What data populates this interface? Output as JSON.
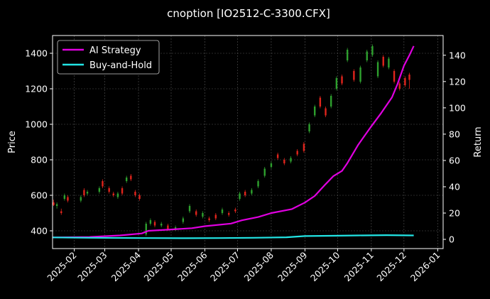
{
  "chart_data": {
    "type": "candlestick+line",
    "title": "cnoption [IO2512-C-3300.CFX]",
    "ylabel_left": "Price",
    "ylabel_right": "Return",
    "ylim_left": [
      300,
      1500
    ],
    "ylim_right": [
      -7,
      155
    ],
    "xlim": [
      "2025-01-12",
      "2026-01-06"
    ],
    "yticks_left": [
      400,
      600,
      800,
      1000,
      1200,
      1400
    ],
    "yticks_right": [
      0,
      20,
      40,
      60,
      80,
      100,
      120,
      140
    ],
    "xticks": [
      "2025-02",
      "2025-03",
      "2025-04",
      "2025-05",
      "2025-06",
      "2025-07",
      "2025-08",
      "2025-09",
      "2025-10",
      "2025-11",
      "2025-12",
      "2026-01"
    ],
    "grid": true,
    "legend_position": "top-left",
    "colors": {
      "background": "#000000",
      "ai_strategy": "#e000e0",
      "buy_and_hold": "#22e5e5",
      "candle_up": "#2ea02e",
      "candle_down": "#e0241c",
      "grid": "#555555"
    },
    "series": [
      {
        "name": "AI Strategy",
        "points": [
          [
            "2025-01-12",
            1.5
          ],
          [
            "2025-02-15",
            1.8
          ],
          [
            "2025-03-15",
            3.0
          ],
          [
            "2025-04-04",
            4.5
          ],
          [
            "2025-04-10",
            6.5
          ],
          [
            "2025-05-01",
            7.5
          ],
          [
            "2025-05-20",
            8.5
          ],
          [
            "2025-06-01",
            10.0
          ],
          [
            "2025-06-25",
            12.0
          ],
          [
            "2025-07-05",
            14.5
          ],
          [
            "2025-07-20",
            17.0
          ],
          [
            "2025-08-01",
            20.0
          ],
          [
            "2025-08-20",
            23.0
          ],
          [
            "2025-09-01",
            28.0
          ],
          [
            "2025-09-10",
            33.0
          ],
          [
            "2025-09-20",
            42.0
          ],
          [
            "2025-09-27",
            48.0
          ],
          [
            "2025-10-05",
            52.0
          ],
          [
            "2025-10-10",
            58.0
          ],
          [
            "2025-10-20",
            72.0
          ],
          [
            "2025-11-01",
            86.0
          ],
          [
            "2025-11-10",
            96.0
          ],
          [
            "2025-11-20",
            108.0
          ],
          [
            "2025-11-25",
            118.0
          ],
          [
            "2025-12-01",
            132.0
          ],
          [
            "2025-12-06",
            140.0
          ],
          [
            "2025-12-10",
            147.0
          ]
        ]
      },
      {
        "name": "Buy-and-Hold",
        "points": [
          [
            "2025-01-12",
            1.5
          ],
          [
            "2025-02-15",
            1.2
          ],
          [
            "2025-04-04",
            1.0
          ],
          [
            "2025-04-10",
            1.0
          ],
          [
            "2025-05-15",
            0.9
          ],
          [
            "2025-06-15",
            1.0
          ],
          [
            "2025-07-15",
            1.2
          ],
          [
            "2025-08-15",
            1.6
          ],
          [
            "2025-09-01",
            2.5
          ],
          [
            "2025-10-01",
            2.8
          ],
          [
            "2025-10-20",
            3.0
          ],
          [
            "2025-11-15",
            3.2
          ],
          [
            "2025-12-10",
            3.0
          ]
        ]
      }
    ],
    "candles": [
      [
        "2025-01-13",
        560,
        545,
        575,
        540
      ],
      [
        "2025-01-16",
        540,
        550,
        560,
        525
      ],
      [
        "2025-01-20",
        510,
        500,
        525,
        490
      ],
      [
        "2025-01-23",
        580,
        600,
        610,
        570
      ],
      [
        "2025-01-26",
        590,
        570,
        600,
        560
      ],
      [
        "2025-02-07",
        570,
        590,
        600,
        560
      ],
      [
        "2025-02-10",
        630,
        600,
        640,
        590
      ],
      [
        "2025-02-13",
        610,
        620,
        630,
        600
      ],
      [
        "2025-02-24",
        620,
        640,
        650,
        610
      ],
      [
        "2025-02-27",
        680,
        650,
        690,
        640
      ],
      [
        "2025-03-05",
        640,
        620,
        650,
        610
      ],
      [
        "2025-03-09",
        610,
        600,
        620,
        590
      ],
      [
        "2025-03-13",
        590,
        610,
        620,
        580
      ],
      [
        "2025-03-17",
        640,
        610,
        650,
        600
      ],
      [
        "2025-03-21",
        680,
        700,
        710,
        670
      ],
      [
        "2025-03-25",
        710,
        690,
        720,
        680
      ],
      [
        "2025-03-29",
        620,
        600,
        630,
        590
      ],
      [
        "2025-04-02",
        600,
        580,
        610,
        570
      ],
      [
        "2025-04-08",
        380,
        440,
        450,
        370
      ],
      [
        "2025-04-12",
        440,
        460,
        470,
        430
      ],
      [
        "2025-04-16",
        450,
        430,
        460,
        420
      ],
      [
        "2025-04-22",
        430,
        440,
        450,
        420
      ],
      [
        "2025-04-28",
        430,
        410,
        440,
        400
      ],
      [
        "2025-05-05",
        410,
        420,
        430,
        400
      ],
      [
        "2025-05-12",
        450,
        470,
        480,
        440
      ],
      [
        "2025-05-18",
        510,
        540,
        550,
        500
      ],
      [
        "2025-05-24",
        510,
        490,
        520,
        480
      ],
      [
        "2025-05-30",
        480,
        500,
        510,
        470
      ],
      [
        "2025-06-05",
        470,
        460,
        480,
        450
      ],
      [
        "2025-06-11",
        490,
        470,
        500,
        460
      ],
      [
        "2025-06-17",
        500,
        520,
        530,
        490
      ],
      [
        "2025-06-23",
        500,
        490,
        510,
        480
      ],
      [
        "2025-06-29",
        520,
        510,
        530,
        500
      ],
      [
        "2025-07-03",
        580,
        610,
        620,
        570
      ],
      [
        "2025-07-08",
        620,
        600,
        630,
        590
      ],
      [
        "2025-07-14",
        610,
        630,
        640,
        600
      ],
      [
        "2025-07-20",
        650,
        680,
        690,
        640
      ],
      [
        "2025-07-26",
        710,
        750,
        760,
        700
      ],
      [
        "2025-08-01",
        760,
        780,
        790,
        750
      ],
      [
        "2025-08-07",
        830,
        810,
        840,
        800
      ],
      [
        "2025-08-13",
        800,
        780,
        810,
        770
      ],
      [
        "2025-08-19",
        790,
        810,
        820,
        780
      ],
      [
        "2025-08-25",
        850,
        830,
        860,
        820
      ],
      [
        "2025-08-31",
        890,
        850,
        900,
        840
      ],
      [
        "2025-09-05",
        960,
        1000,
        1010,
        950
      ],
      [
        "2025-09-10",
        1050,
        1100,
        1110,
        1040
      ],
      [
        "2025-09-15",
        1150,
        1100,
        1160,
        1090
      ],
      [
        "2025-09-20",
        1090,
        1050,
        1100,
        1040
      ],
      [
        "2025-09-25",
        1100,
        1160,
        1170,
        1090
      ],
      [
        "2025-09-30",
        1200,
        1260,
        1270,
        1190
      ],
      [
        "2025-10-05",
        1270,
        1230,
        1280,
        1220
      ],
      [
        "2025-10-10",
        1360,
        1420,
        1430,
        1350
      ],
      [
        "2025-10-16",
        1300,
        1250,
        1310,
        1240
      ],
      [
        "2025-10-22",
        1240,
        1320,
        1330,
        1230
      ],
      [
        "2025-10-28",
        1360,
        1410,
        1420,
        1350
      ],
      [
        "2025-11-02",
        1390,
        1440,
        1450,
        1380
      ],
      [
        "2025-11-07",
        1270,
        1350,
        1360,
        1260
      ],
      [
        "2025-11-12",
        1380,
        1330,
        1390,
        1320
      ],
      [
        "2025-11-17",
        1320,
        1370,
        1380,
        1310
      ],
      [
        "2025-11-22",
        1300,
        1240,
        1310,
        1230
      ],
      [
        "2025-11-27",
        1230,
        1200,
        1240,
        1190
      ],
      [
        "2025-12-02",
        1260,
        1220,
        1270,
        1210
      ],
      [
        "2025-12-06",
        1280,
        1250,
        1290,
        1200
      ]
    ]
  }
}
